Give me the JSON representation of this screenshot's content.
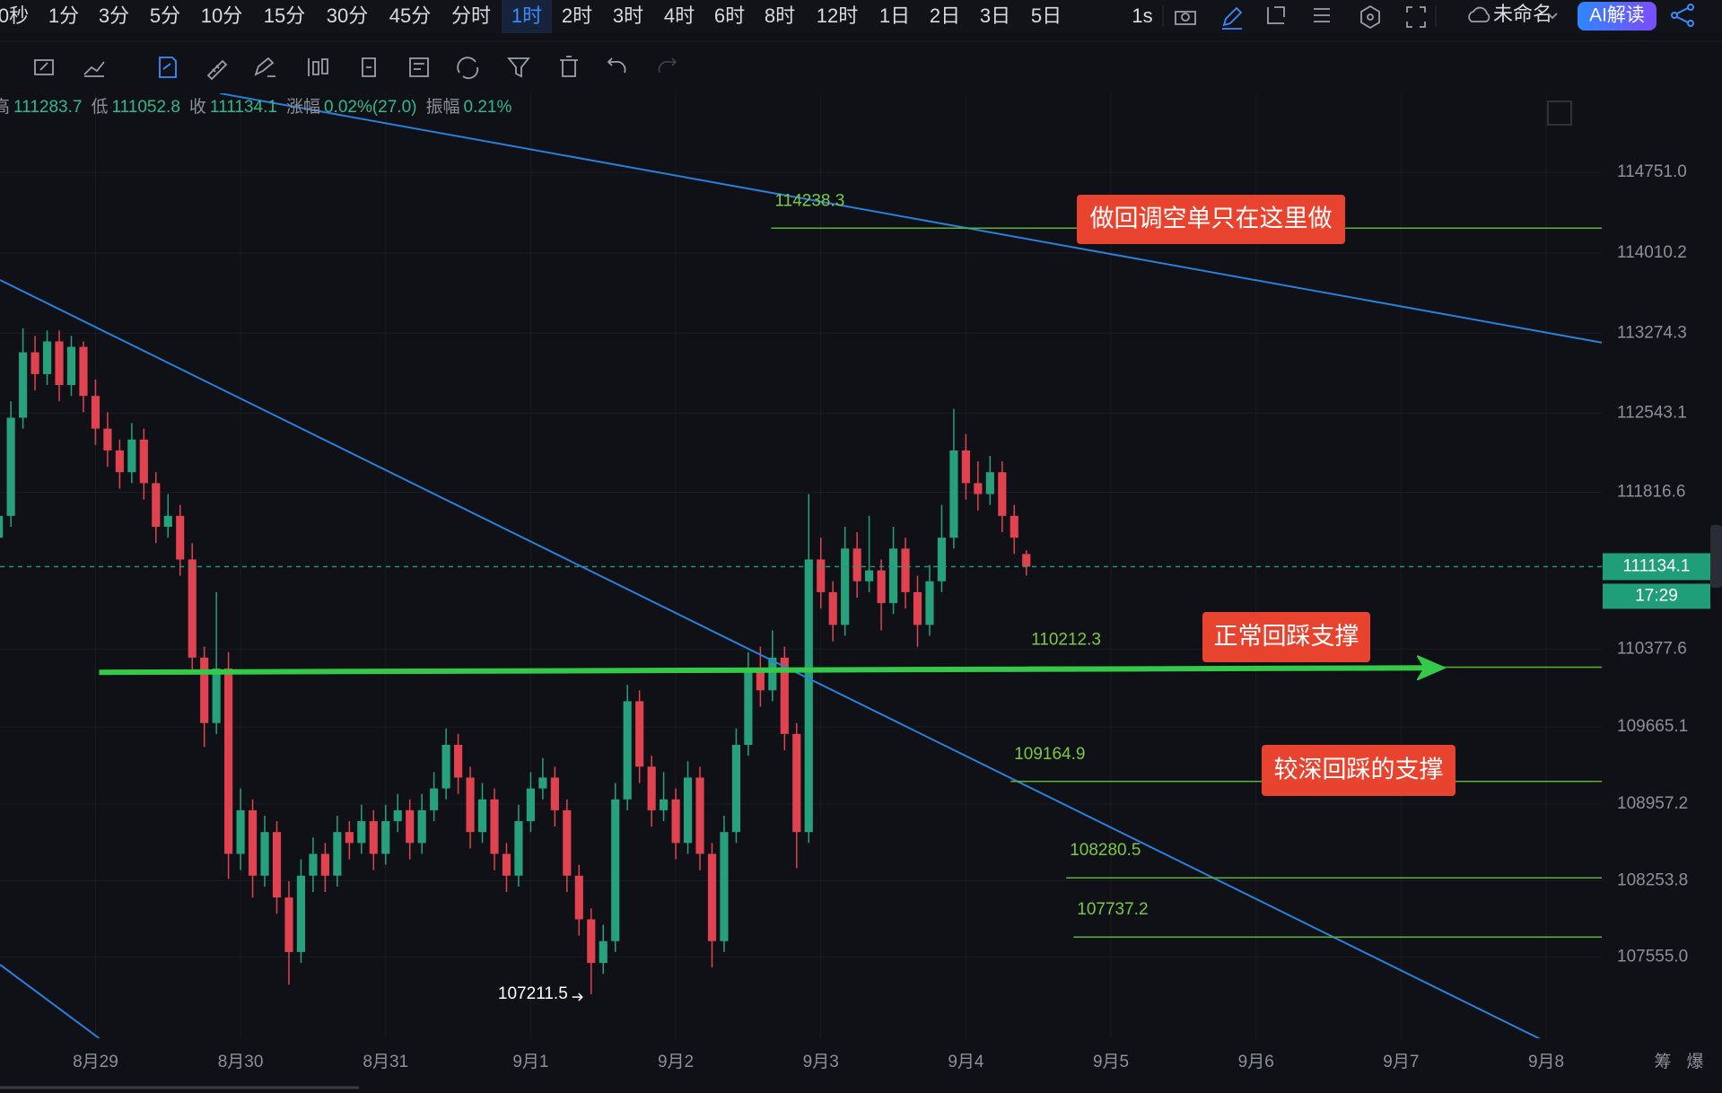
{
  "toolbar": {
    "timeframes": [
      {
        "label": "0秒"
      },
      {
        "label": "1分"
      },
      {
        "label": "3分"
      },
      {
        "label": "5分"
      },
      {
        "label": "10分"
      },
      {
        "label": "15分"
      },
      {
        "label": "30分"
      },
      {
        "label": "45分"
      },
      {
        "label": "分时"
      },
      {
        "label": "1时",
        "active": true
      },
      {
        "label": "2时"
      },
      {
        "label": "3时"
      },
      {
        "label": "4时"
      },
      {
        "label": "6时"
      },
      {
        "label": "8时"
      },
      {
        "label": "12时"
      },
      {
        "label": "1日"
      },
      {
        "label": "2日"
      },
      {
        "label": "3日"
      },
      {
        "label": "5日"
      }
    ],
    "interval": "1s",
    "layout_name": "未命名",
    "ai_button": "AI解读"
  },
  "ohlc_info": [
    {
      "label": "高",
      "value": 111283.7
    },
    {
      "label": "低",
      "value": 111052.8
    },
    {
      "label": "收",
      "value": 111134.1
    },
    {
      "label": "涨幅",
      "value": "0.02%(27.0)"
    },
    {
      "label": "振幅",
      "value": "0.21%"
    }
  ],
  "chart_data": {
    "type": "candlestick",
    "up_color": "#26a17b",
    "down_color": "#e0424f",
    "candles": [
      [
        111400,
        111750,
        111250,
        111600
      ],
      [
        111600,
        112650,
        111500,
        112500
      ],
      [
        112500,
        113320,
        112400,
        113100
      ],
      [
        113100,
        113250,
        112750,
        112900
      ],
      [
        112900,
        113300,
        112800,
        113200
      ],
      [
        113200,
        113300,
        112650,
        112800
      ],
      [
        112800,
        113250,
        112700,
        113150
      ],
      [
        113150,
        113200,
        112550,
        112700
      ],
      [
        112700,
        112850,
        112250,
        112400
      ],
      [
        112400,
        112550,
        112050,
        112200
      ],
      [
        112200,
        112300,
        111850,
        112000
      ],
      [
        112000,
        112450,
        111900,
        112300
      ],
      [
        112300,
        112400,
        111750,
        111900
      ],
      [
        111900,
        112000,
        111350,
        111500
      ],
      [
        111500,
        111800,
        111400,
        111600
      ],
      [
        111600,
        111700,
        111050,
        111200
      ],
      [
        111200,
        111350,
        110150,
        110300
      ],
      [
        110300,
        110400,
        109480,
        109700
      ],
      [
        109700,
        110900,
        109600,
        110200
      ],
      [
        110200,
        110350,
        108270,
        108500
      ],
      [
        108500,
        109100,
        108350,
        108900
      ],
      [
        108900,
        109000,
        108100,
        108300
      ],
      [
        108300,
        108850,
        108200,
        108700
      ],
      [
        108700,
        108800,
        107950,
        108100
      ],
      [
        108100,
        108250,
        107300,
        107600
      ],
      [
        107600,
        108450,
        107500,
        108300
      ],
      [
        108300,
        108650,
        108150,
        108500
      ],
      [
        108500,
        108600,
        108150,
        108300
      ],
      [
        108300,
        108850,
        108200,
        108700
      ],
      [
        108700,
        108800,
        108450,
        108600
      ],
      [
        108600,
        108950,
        108500,
        108800
      ],
      [
        108800,
        108900,
        108350,
        108500
      ],
      [
        108500,
        108950,
        108400,
        108800
      ],
      [
        108800,
        109050,
        108700,
        108900
      ],
      [
        108900,
        109000,
        108450,
        108600
      ],
      [
        108600,
        109050,
        108500,
        108900
      ],
      [
        108900,
        109250,
        108800,
        109100
      ],
      [
        109100,
        109650,
        109000,
        109500
      ],
      [
        109500,
        109600,
        109050,
        109200
      ],
      [
        109200,
        109300,
        108550,
        108700
      ],
      [
        108700,
        109150,
        108600,
        109000
      ],
      [
        109000,
        109100,
        108350,
        108500
      ],
      [
        108500,
        108600,
        108150,
        108300
      ],
      [
        108300,
        108950,
        108200,
        108800
      ],
      [
        108800,
        109250,
        108700,
        109100
      ],
      [
        109100,
        109380,
        109000,
        109200
      ],
      [
        109200,
        109300,
        108750,
        108900
      ],
      [
        108900,
        109000,
        108150,
        108300
      ],
      [
        108300,
        108400,
        107750,
        107900
      ],
      [
        107900,
        108000,
        107211.5,
        107500
      ],
      [
        107500,
        107850,
        107400,
        107700
      ],
      [
        107700,
        109150,
        107600,
        109000
      ],
      [
        109000,
        110050,
        108900,
        109900
      ],
      [
        109900,
        110000,
        109150,
        109300
      ],
      [
        109300,
        109400,
        108750,
        108900
      ],
      [
        108900,
        109250,
        108800,
        109000
      ],
      [
        109000,
        109100,
        108450,
        108600
      ],
      [
        108600,
        109350,
        108500,
        109200
      ],
      [
        109200,
        109300,
        108350,
        108500
      ],
      [
        108500,
        108600,
        107460,
        107700
      ],
      [
        107700,
        108850,
        107600,
        108700
      ],
      [
        108700,
        109650,
        108600,
        109500
      ],
      [
        109500,
        110350,
        109400,
        110200
      ],
      [
        110200,
        110400,
        109850,
        110000
      ],
      [
        110000,
        110550,
        109900,
        110300
      ],
      [
        110300,
        110400,
        109450,
        109600
      ],
      [
        109600,
        109700,
        108370,
        108700
      ],
      [
        108700,
        111800,
        108600,
        111200
      ],
      [
        111200,
        111400,
        110750,
        110900
      ],
      [
        110900,
        111000,
        110450,
        110600
      ],
      [
        110600,
        111500,
        110500,
        111300
      ],
      [
        111300,
        111450,
        110850,
        111000
      ],
      [
        111000,
        111600,
        110900,
        111100
      ],
      [
        111100,
        111200,
        110550,
        110800
      ],
      [
        110800,
        111500,
        110700,
        111300
      ],
      [
        111300,
        111400,
        110750,
        110900
      ],
      [
        110900,
        111050,
        110400,
        110600
      ],
      [
        110600,
        111150,
        110500,
        111000
      ],
      [
        111000,
        111700,
        110900,
        111400
      ],
      [
        111400,
        112580,
        111300,
        112200
      ],
      [
        112200,
        112350,
        111750,
        111900
      ],
      [
        111900,
        112100,
        111650,
        111800
      ],
      [
        111800,
        112150,
        111700,
        112000
      ],
      [
        112000,
        112100,
        111450,
        111600
      ],
      [
        111600,
        111700,
        111250,
        111400
      ],
      [
        111250,
        111283.7,
        111052.8,
        111134.1
      ]
    ],
    "xlim": [
      0.1,
      132.6
    ],
    "xticks": [
      {
        "value": 8,
        "label": "8月29"
      },
      {
        "value": 20,
        "label": "8月30"
      },
      {
        "value": 32,
        "label": "8月31"
      },
      {
        "value": 44,
        "label": "9月1"
      },
      {
        "value": 56,
        "label": "9月2"
      },
      {
        "value": 68,
        "label": "9月3"
      },
      {
        "value": 80,
        "label": "9月4"
      },
      {
        "value": 92,
        "label": "9月5"
      },
      {
        "value": 104,
        "label": "9月6"
      },
      {
        "value": 116,
        "label": "9月7"
      },
      {
        "value": 128,
        "label": "9月8"
      }
    ],
    "ylim": [
      106809,
      115475
    ],
    "yticks": [
      {
        "value": 114751,
        "label": "114751.0"
      },
      114010.2,
      113274.3,
      112543.1,
      111816.6,
      110377.6,
      109665.1,
      108957.2,
      108253.8,
      {
        "value": 107555,
        "label": "107555.0"
      }
    ],
    "grid": true,
    "last_price": {
      "value": 111134.1,
      "countdown": "17:29",
      "color": "#1f9e78"
    },
    "levels_color": "#5cb338",
    "levels": [
      {
        "value": 114238.3,
        "start": 63.9
      },
      {
        "value": 110212.3,
        "start": 85.1
      },
      {
        "value": 109164.9,
        "start": 83.7
      },
      {
        "value": 108280.5,
        "start": 88.3
      },
      {
        "value": 107737.2,
        "start": 88.9
      }
    ],
    "trendlines_color": "#2a7fd9",
    "trendlines": [
      {
        "points": [
          [
            18.3,
            115475
          ],
          [
            132.6,
            113189
          ]
        ]
      },
      {
        "points": [
          [
            0.1,
            113763
          ],
          [
            128.3,
            106759
          ]
        ]
      },
      {
        "points": [
          [
            0.1,
            107484
          ],
          [
            8.3,
            106809
          ]
        ]
      }
    ],
    "arrow": {
      "points": [
        [
          8.3,
          110165
        ],
        [
          119.6,
          110206
        ]
      ],
      "color": "#35c94a"
    },
    "annotations": [
      {
        "text": "做回调空单只在这里做"
      },
      {
        "text": "正常回踩支撑"
      },
      {
        "text": "较深回踩的支撑"
      }
    ],
    "low_marker": {
      "value": 107211.5
    }
  },
  "footer": [
    "筹",
    "爆"
  ]
}
